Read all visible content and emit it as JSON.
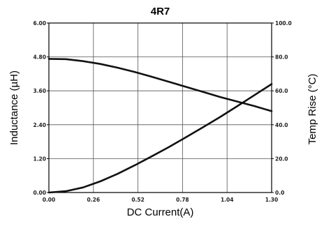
{
  "chart_data": {
    "type": "line",
    "title": "4R7",
    "xlabel": "DC Current(A)",
    "ylabel": "Inductance (µH)",
    "y2label": "Temp Rise (°C)",
    "xlim": [
      0,
      1.3
    ],
    "ylim": [
      0,
      6
    ],
    "y2lim": [
      0,
      100
    ],
    "x_ticks": [
      "0.00",
      "0.26",
      "0.52",
      "0.78",
      "1.04",
      "1.30"
    ],
    "y_ticks": [
      "0.00",
      "1.20",
      "2.40",
      "3.60",
      "4.80",
      "6.00"
    ],
    "y2_ticks": [
      "0.0",
      "20.0",
      "40.0",
      "60.0",
      "80.0",
      "100.0"
    ],
    "grid": true,
    "series": [
      {
        "axis": "left",
        "x": [
          0,
          0.1,
          0.2,
          0.3,
          0.4,
          0.5,
          0.6,
          0.7,
          0.8,
          0.9,
          1.0,
          1.1,
          1.2,
          1.3
        ],
        "y": [
          4.73,
          4.72,
          4.65,
          4.55,
          4.42,
          4.27,
          4.1,
          3.92,
          3.74,
          3.56,
          3.38,
          3.22,
          3.06,
          2.88
        ]
      },
      {
        "axis": "right",
        "x": [
          0,
          0.1,
          0.2,
          0.3,
          0.4,
          0.5,
          0.6,
          0.7,
          0.8,
          0.9,
          1.0,
          1.1,
          1.2,
          1.3
        ],
        "y": [
          0,
          0.8,
          3.0,
          6.6,
          11.0,
          16.0,
          21.3,
          26.8,
          32.6,
          38.5,
          44.6,
          51.0,
          57.5,
          64.0
        ]
      }
    ]
  }
}
